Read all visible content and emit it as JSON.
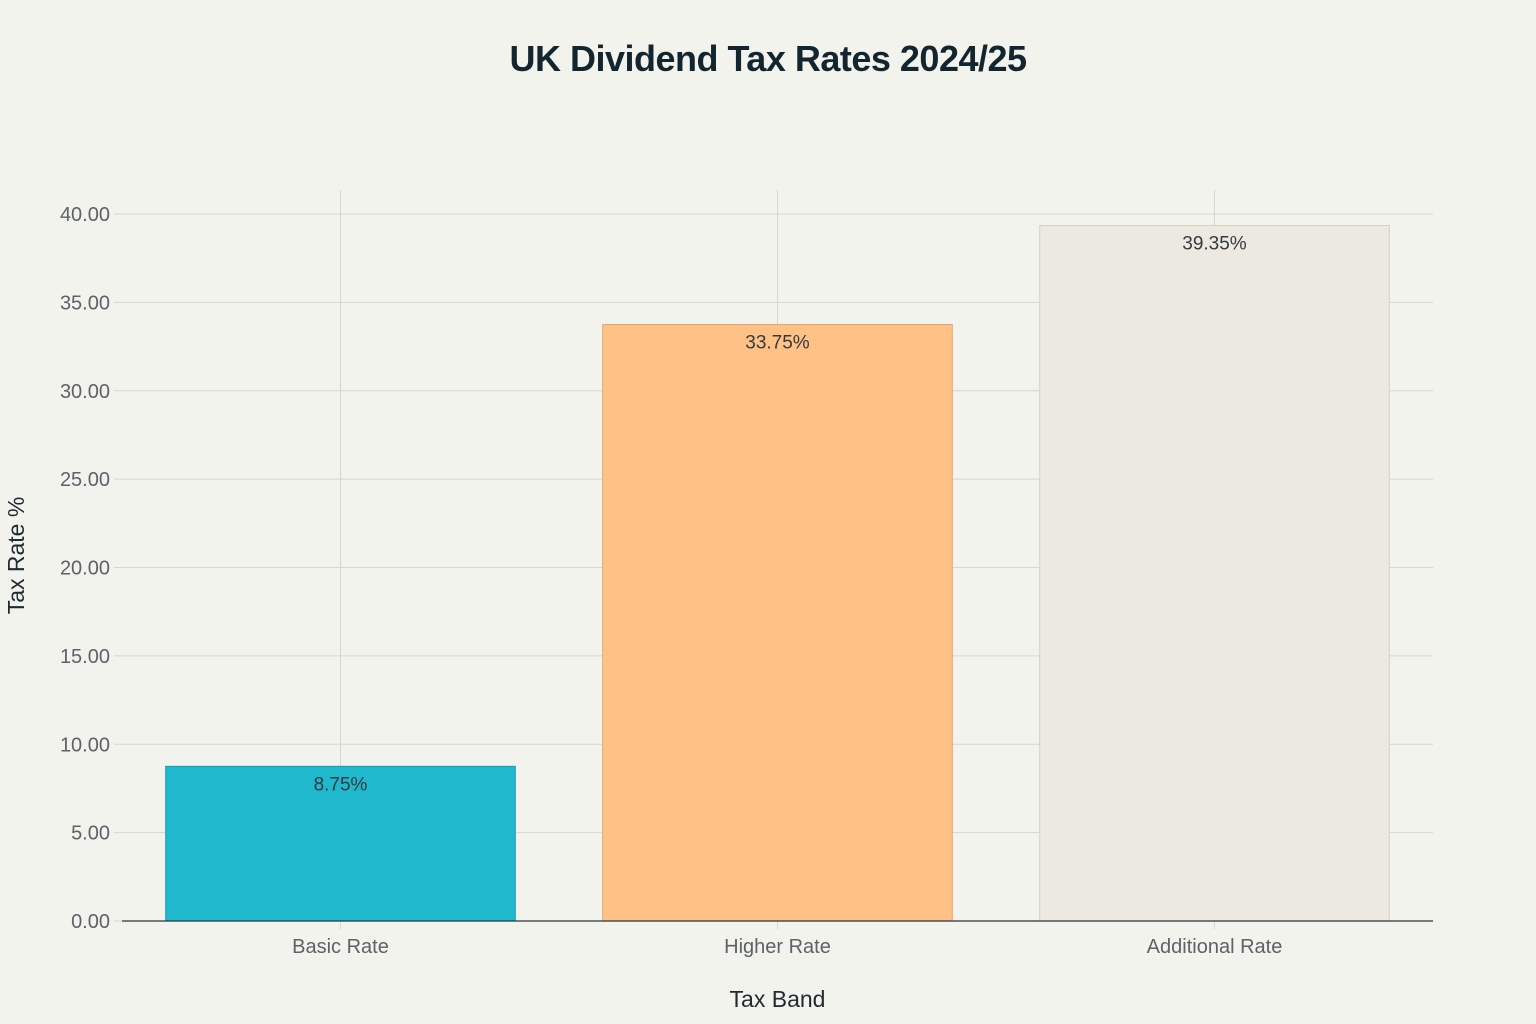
{
  "chart_data": {
    "type": "bar",
    "title": "UK Dividend Tax Rates 2024/25",
    "xlabel": "Tax Band",
    "ylabel": "Tax Rate %",
    "categories": [
      "Basic Rate",
      "Higher Rate",
      "Additional Rate"
    ],
    "values": [
      8.75,
      33.75,
      39.35
    ],
    "data_labels": [
      "8.75%",
      "33.75%",
      "39.35%"
    ],
    "colors": [
      "#1fb8cd",
      "#ffc185",
      "#eceae0"
    ],
    "ylim": [
      0,
      40
    ],
    "yticks": [
      0,
      5,
      10,
      15,
      20,
      25,
      30,
      35,
      40
    ],
    "ytick_labels": [
      "0.00",
      "5.00",
      "10.00",
      "15.00",
      "20.00",
      "25.00",
      "30.00",
      "35.00",
      "40.00"
    ],
    "grid": true,
    "legend": "none"
  }
}
